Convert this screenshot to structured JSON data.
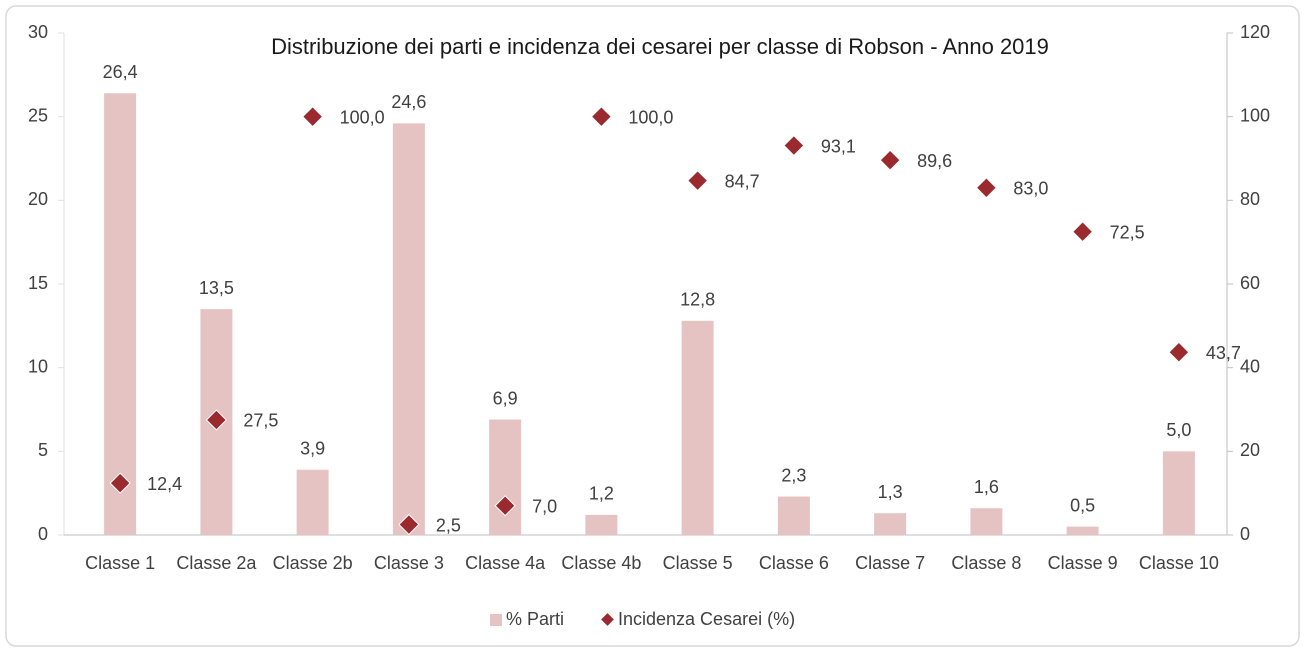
{
  "chart_data": {
    "type": "combo",
    "title": "Distribuzione dei parti e incidenza dei cesarei per classe di Robson - Anno 2019",
    "categories": [
      "Classe 1",
      "Classe 2a",
      "Classe 2b",
      "Classe 3",
      "Classe 4a",
      "Classe 4b",
      "Classe 5",
      "Classe 6",
      "Classe 7",
      "Classe 8",
      "Classe 9",
      "Classe 10"
    ],
    "series": [
      {
        "name": "% Parti",
        "type": "bar",
        "color": "#e6c3c3",
        "values": [
          26.4,
          13.5,
          3.9,
          24.6,
          6.9,
          1.2,
          12.8,
          2.3,
          1.3,
          1.6,
          0.5,
          5.0
        ],
        "value_labels": [
          "26,4",
          "13,5",
          "3,9",
          "24,6",
          "6,9",
          "1,2",
          "12,8",
          "2,3",
          "1,3",
          "1,6",
          "0,5",
          "5,0"
        ]
      },
      {
        "name": "Incidenza Cesarei (%)",
        "type": "scatter",
        "axis": "y2",
        "color": "#9b2a2e",
        "values": [
          12.4,
          27.5,
          100.0,
          2.5,
          7.0,
          100.0,
          84.7,
          93.1,
          89.6,
          83.0,
          72.5,
          43.7
        ],
        "value_labels": [
          "12,4",
          "27,5",
          "100,0",
          "2,5",
          "7,0",
          "100,0",
          "84,7",
          "93,1",
          "89,6",
          "83,0",
          "72,5",
          "43,7"
        ]
      }
    ],
    "ylim": [
      0,
      30
    ],
    "yticks": [
      0,
      5,
      10,
      15,
      20,
      25,
      30
    ],
    "y2lim": [
      0,
      120
    ],
    "y2ticks": [
      0,
      20,
      40,
      60,
      80,
      100,
      120
    ],
    "legend": "bottom",
    "grid": false
  }
}
